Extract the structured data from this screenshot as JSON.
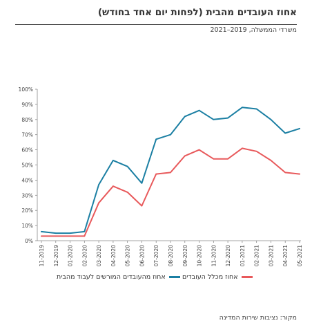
{
  "header": {
    "title": "אחוז העובדים מהבית (לפחות יום אחד בחודש)",
    "subtitle": "משרדי הממשלה, 2019–2021",
    "source": "מקור: נציבות שירות המדינה"
  },
  "colors": {
    "series_teal": "#1b7fa3",
    "series_red": "#e8595b",
    "axis": "#888888"
  },
  "chart_data": {
    "type": "line",
    "x": [
      "11-2019",
      "12-2019",
      "01-2020",
      "02-2020",
      "03-2020",
      "04-2020",
      "05-2020",
      "06-2020",
      "07-2020",
      "08-2020",
      "09-2020",
      "10-2020",
      "11-2020",
      "12-2020",
      "01-2021",
      "02-2021",
      "03-2021",
      "04-2021",
      "05-2021"
    ],
    "series": [
      {
        "name": "אחוז מהעובדים המורשים לעבוד מהבית",
        "color": "#1b7fa3",
        "values": [
          6,
          5,
          5,
          6,
          37,
          53,
          49,
          38,
          67,
          70,
          82,
          86,
          80,
          81,
          88,
          87,
          80,
          71,
          74
        ]
      },
      {
        "name": "אחוז מכלל העובדים",
        "color": "#e8595b",
        "values": [
          3,
          3,
          3,
          3,
          25,
          36,
          32,
          23,
          44,
          45,
          56,
          60,
          54,
          54,
          61,
          59,
          53,
          45,
          44
        ]
      }
    ],
    "ylim": [
      0,
      100
    ],
    "yticks": [
      "0%",
      "10%",
      "20%",
      "30%",
      "40%",
      "50%",
      "60%",
      "70%",
      "80%",
      "90%",
      "100%"
    ],
    "ytick_values": [
      0,
      10,
      20,
      30,
      40,
      50,
      60,
      70,
      80,
      90,
      100
    ],
    "grid": false,
    "legend": "bottom"
  }
}
